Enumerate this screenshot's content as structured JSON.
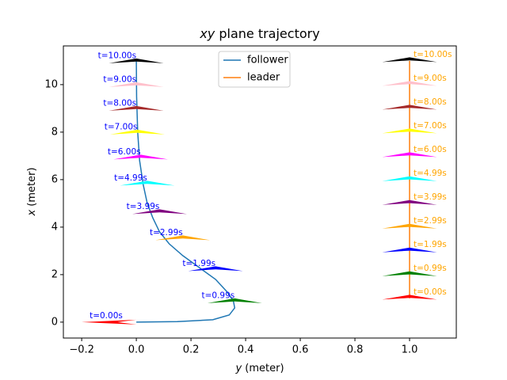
{
  "chart_data": {
    "type": "trajectory",
    "title": {
      "math": "xy",
      "text": "plane trajectory"
    },
    "xlabel": {
      "math": "y",
      "text": "(meter)"
    },
    "ylabel": {
      "math": "x",
      "text": "(meter)"
    },
    "xlim": [
      -0.267,
      1.171
    ],
    "ylim": [
      -0.67,
      11.63
    ],
    "xticks": [
      {
        "value": -0.2,
        "label": "−0.2"
      },
      {
        "value": 0,
        "label": "0.0"
      },
      0.2,
      0.4,
      0.6,
      0.8,
      {
        "value": 1,
        "label": "1.0"
      }
    ],
    "yticks": [
      0,
      2,
      4,
      6,
      8,
      10
    ],
    "legend": "upper center",
    "series": [
      {
        "name": "follower",
        "color": "#1f77b4",
        "label_color": "#0000ff",
        "label_side": "left",
        "x": [
          0,
          0.15,
          0.28,
          0.34,
          0.36,
          0.355,
          0.33,
          0.29,
          0.23,
          0.17,
          0.12,
          0.085,
          0.06,
          0.04,
          0.025,
          0.012,
          0.005,
          0.001,
          0
        ],
        "values": [
          0,
          0.02,
          0.1,
          0.3,
          0.6,
          0.9,
          1.3,
          1.8,
          2.3,
          2.8,
          3.3,
          3.8,
          4.4,
          5.0,
          5.8,
          6.8,
          8,
          9.5,
          11
        ],
        "poses": [
          {
            "label": "t=0.00s",
            "x": -0.05,
            "value": 0,
            "heading": -90,
            "color": "#ff0000"
          },
          {
            "label": "t=0.99s",
            "x": 0.36,
            "value": 0.85,
            "heading": 0,
            "color": "#008000"
          },
          {
            "label": "t=1.99s",
            "x": 0.29,
            "value": 2.2,
            "heading": 0,
            "color": "#0000ff"
          },
          {
            "label": "t=2.99s",
            "x": 0.17,
            "value": 3.5,
            "heading": 0,
            "color": "#ffa500"
          },
          {
            "label": "t=3.99s",
            "x": 0.085,
            "value": 4.6,
            "heading": 0,
            "color": "#800080"
          },
          {
            "label": "t=4.99s",
            "x": 0.04,
            "value": 5.8,
            "heading": 0,
            "color": "#00ffff"
          },
          {
            "label": "t=6.00s",
            "x": 0.016,
            "value": 6.9,
            "heading": 0,
            "color": "#ff00ff"
          },
          {
            "label": "t=7.00s",
            "x": 0.004,
            "value": 7.95,
            "heading": 0,
            "color": "#ffff00"
          },
          {
            "label": "t=8.00s",
            "x": 0,
            "value": 8.95,
            "heading": 0,
            "color": "#a52a2a"
          },
          {
            "label": "t=9.00s",
            "x": 0,
            "value": 9.95,
            "heading": 0,
            "color": "#ffc0cb"
          },
          {
            "label": "t=10.00s",
            "x": 0,
            "value": 10.95,
            "heading": 0,
            "color": "#000000"
          }
        ]
      },
      {
        "name": "leader",
        "color": "#ff7f0e",
        "label_color": "#ffa500",
        "label_side": "right",
        "x": [
          1,
          1
        ],
        "values": [
          1,
          11
        ],
        "poses": [
          {
            "label": "t=0.00s",
            "x": 1,
            "value": 1,
            "heading": 0,
            "color": "#ff0000"
          },
          {
            "label": "t=0.99s",
            "x": 1,
            "value": 1.99,
            "heading": 0,
            "color": "#008000"
          },
          {
            "label": "t=1.99s",
            "x": 1,
            "value": 2.99,
            "heading": 0,
            "color": "#0000ff"
          },
          {
            "label": "t=2.99s",
            "x": 1,
            "value": 3.99,
            "heading": 0,
            "color": "#ffa500"
          },
          {
            "label": "t=3.99s",
            "x": 1,
            "value": 4.99,
            "heading": 0,
            "color": "#800080"
          },
          {
            "label": "t=4.99s",
            "x": 1,
            "value": 5.99,
            "heading": 0,
            "color": "#00ffff"
          },
          {
            "label": "t=6.00s",
            "x": 1,
            "value": 7,
            "heading": 0,
            "color": "#ff00ff"
          },
          {
            "label": "t=7.00s",
            "x": 1,
            "value": 8,
            "heading": 0,
            "color": "#ffff00"
          },
          {
            "label": "t=8.00s",
            "x": 1,
            "value": 9,
            "heading": 0,
            "color": "#a52a2a"
          },
          {
            "label": "t=9.00s",
            "x": 1,
            "value": 10,
            "heading": 0,
            "color": "#ffc0cb"
          },
          {
            "label": "t=10.00s",
            "x": 1,
            "value": 11,
            "heading": 0,
            "color": "#000000"
          }
        ]
      }
    ]
  }
}
